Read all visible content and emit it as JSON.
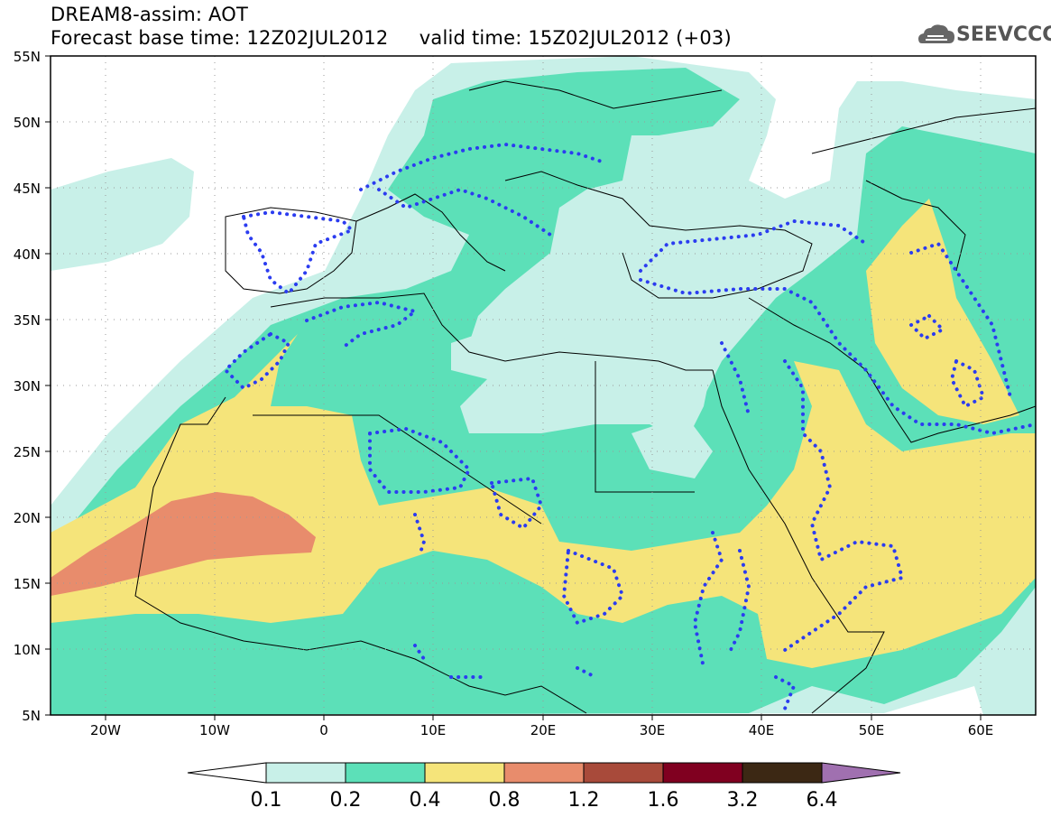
{
  "header": {
    "title_line1": "DREAM8-assim: AOT",
    "title_line2": "Forecast base time: 12Z02JUL2012     valid time: 15Z02JUL2012 (+03)",
    "logo_text": "SEEVCCC",
    "logo_icon": "cloud-icon"
  },
  "map": {
    "region": {
      "lon": [
        -25,
        65
      ],
      "lat": [
        5,
        55
      ]
    },
    "lat_ticks": [
      {
        "value": 55,
        "label": "55N"
      },
      {
        "value": 50,
        "label": "50N"
      },
      {
        "value": 45,
        "label": "45N"
      },
      {
        "value": 40,
        "label": "40N"
      },
      {
        "value": 35,
        "label": "35N"
      },
      {
        "value": 30,
        "label": "30N"
      },
      {
        "value": 25,
        "label": "25N"
      },
      {
        "value": 20,
        "label": "20N"
      },
      {
        "value": 15,
        "label": "15N"
      },
      {
        "value": 10,
        "label": "10N"
      },
      {
        "value": 5,
        "label": "5N"
      }
    ],
    "lon_ticks": [
      {
        "value": -20,
        "label": "20W"
      },
      {
        "value": -10,
        "label": "10W"
      },
      {
        "value": 0,
        "label": "0"
      },
      {
        "value": 10,
        "label": "10E"
      },
      {
        "value": 20,
        "label": "20E"
      },
      {
        "value": 30,
        "label": "30E"
      },
      {
        "value": 40,
        "label": "40E"
      },
      {
        "value": 50,
        "label": "50E"
      },
      {
        "value": 60,
        "label": "60E"
      }
    ],
    "dotted_contour_color": "#2b3cf0",
    "grid": "dotted"
  },
  "colorbar": {
    "levels": [
      "0.1",
      "0.2",
      "0.4",
      "0.8",
      "1.2",
      "1.6",
      "3.2",
      "6.4"
    ],
    "colors": [
      "#ffffff",
      "#c8f0e8",
      "#5ce0b8",
      "#f5e47a",
      "#e88c6c",
      "#a84a3a",
      "#800020",
      "#3c2814",
      "#a070b0"
    ]
  }
}
